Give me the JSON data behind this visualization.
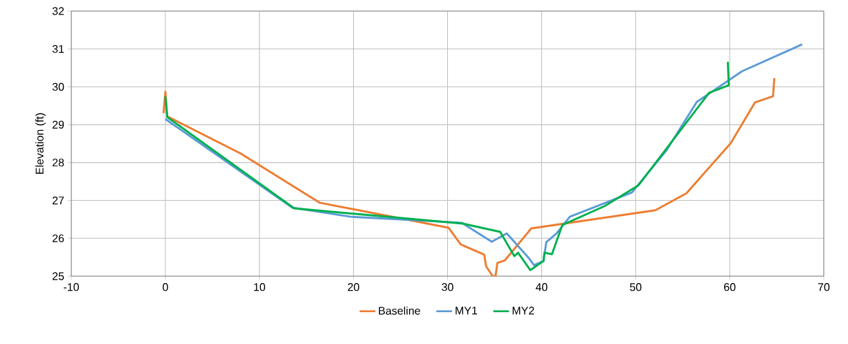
{
  "chart_data": {
    "type": "line",
    "ylabel": "Elevation (ft)",
    "xlim": [
      -10,
      70
    ],
    "xticks": [
      -10,
      0,
      10,
      20,
      30,
      40,
      50,
      60,
      70
    ],
    "ylim": [
      25,
      32
    ],
    "yticks": [
      25,
      26,
      27,
      28,
      29,
      30,
      31,
      32
    ],
    "grid": true,
    "legend": "bottom",
    "marker": "none",
    "line_style": "solid",
    "series": [
      {
        "name": "Baseline",
        "color": "#ed7d31",
        "x": [
          -0.2,
          0,
          0.2,
          8.0,
          16.4,
          30.1,
          31.4,
          33.9,
          34.1,
          34.8,
          35.1,
          35.3,
          36.1,
          38.9,
          52.1,
          55.4,
          60.1,
          62.7,
          64.6,
          64.75
        ],
        "values": [
          29.3,
          29.87,
          29.22,
          28.24,
          26.94,
          26.28,
          25.84,
          25.57,
          25.26,
          25.0,
          25.0,
          25.35,
          25.42,
          26.26,
          26.74,
          27.19,
          28.51,
          29.59,
          29.75,
          30.23
        ]
      },
      {
        "name": "MY1",
        "color": "#5b9bd5",
        "x": [
          0,
          13.5,
          19.7,
          31.5,
          34.7,
          36.3,
          38.6,
          39.2,
          40.2,
          40.5,
          41.6,
          43.0,
          49.6,
          53.3,
          56.5,
          61.3,
          67.7
        ],
        "values": [
          29.15,
          26.81,
          26.57,
          26.41,
          25.91,
          26.13,
          25.49,
          25.29,
          25.4,
          25.9,
          26.13,
          26.57,
          27.21,
          28.33,
          29.6,
          30.41,
          31.12
        ]
      },
      {
        "name": "MY2",
        "color": "#00b050",
        "x": [
          0,
          0.2,
          13.7,
          31.6,
          35.6,
          37.1,
          37.5,
          38.8,
          40.2,
          40.3,
          41.1,
          42.2,
          46.7,
          50.3,
          57.8,
          59.9,
          59.8
        ],
        "values": [
          29.75,
          29.2,
          26.79,
          26.39,
          26.17,
          25.53,
          25.62,
          25.16,
          25.4,
          25.62,
          25.58,
          26.35,
          26.85,
          27.4,
          29.84,
          30.04,
          30.66
        ]
      }
    ]
  }
}
